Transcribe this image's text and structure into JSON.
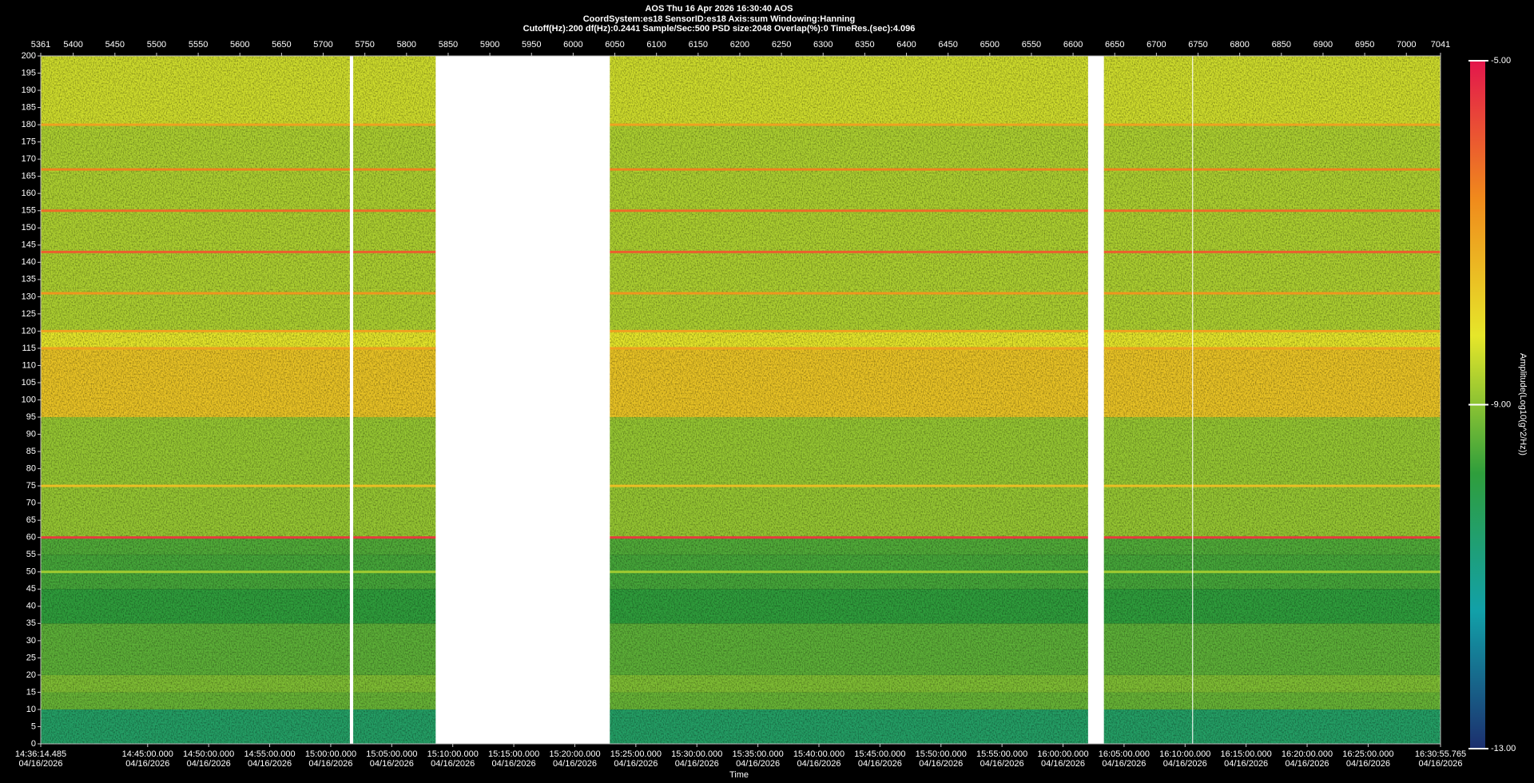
{
  "chart_data": {
    "type": "spectrogram",
    "title": "AOS  Thu 16 Apr 2026 16:30:40  AOS",
    "subtitle": "CoordSystem:es18    SensorID:es18     Axis:sum     Windowing:Hanning",
    "parameters": "Cutoff(Hz):200       df(Hz):0.2441       Sample/Sec:500       PSD size:2048         Overlap(%):0         TimeRes.(sec):4.096",
    "xlabel": "Time",
    "zlabel": "Amplitude(Log10(g^2/Hz))",
    "xlim": [
      5361,
      7041
    ],
    "xticks": [
      5361,
      5400,
      5450,
      5500,
      5550,
      5600,
      5650,
      5700,
      5750,
      5800,
      5850,
      5900,
      5950,
      6000,
      6050,
      6100,
      6150,
      6200,
      6250,
      6300,
      6350,
      6400,
      6450,
      6500,
      6550,
      6600,
      6650,
      6700,
      6750,
      6800,
      6850,
      6900,
      6950,
      7000,
      7041
    ],
    "time_ticks": [
      {
        "value": 5361,
        "label": "14:36:14.485",
        "date": "04/16/2026"
      },
      {
        "value": 5489.3,
        "label": "14:45:00.000",
        "date": "04/16/2026"
      },
      {
        "value": 5562.54,
        "label": "14:50:00.000",
        "date": "04/16/2026"
      },
      {
        "value": 5635.78,
        "label": "14:55:00.000",
        "date": "04/16/2026"
      },
      {
        "value": 5709.03,
        "label": "15:00:00.000",
        "date": "04/16/2026"
      },
      {
        "value": 5782.27,
        "label": "15:05:00.000",
        "date": "04/16/2026"
      },
      {
        "value": 5855.51,
        "label": "15:10:00.000",
        "date": "04/16/2026"
      },
      {
        "value": 5928.75,
        "label": "15:15:00.000",
        "date": "04/16/2026"
      },
      {
        "value": 6002.0,
        "label": "15:20:00.000",
        "date": "04/16/2026"
      },
      {
        "value": 6075.24,
        "label": "15:25:00.000",
        "date": "04/16/2026"
      },
      {
        "value": 6148.48,
        "label": "15:30:00.000",
        "date": "04/16/2026"
      },
      {
        "value": 6221.72,
        "label": "15:35:00.000",
        "date": "04/16/2026"
      },
      {
        "value": 6294.97,
        "label": "15:40:00.000",
        "date": "04/16/2026"
      },
      {
        "value": 6368.21,
        "label": "15:45:00.000",
        "date": "04/16/2026"
      },
      {
        "value": 6441.45,
        "label": "15:50:00.000",
        "date": "04/16/2026"
      },
      {
        "value": 6514.69,
        "label": "15:55:00.000",
        "date": "04/16/2026"
      },
      {
        "value": 6587.93,
        "label": "16:00:00.000",
        "date": "04/16/2026"
      },
      {
        "value": 6661.18,
        "label": "16:05:00.000",
        "date": "04/16/2026"
      },
      {
        "value": 6734.42,
        "label": "16:10:00.000",
        "date": "04/16/2026"
      },
      {
        "value": 6807.66,
        "label": "16:15:00.000",
        "date": "04/16/2026"
      },
      {
        "value": 6880.9,
        "label": "16:20:00.000",
        "date": "04/16/2026"
      },
      {
        "value": 6954.15,
        "label": "16:25:00.000",
        "date": "04/16/2026"
      },
      {
        "value": 7041,
        "label": "16:30:55.765",
        "date": "04/16/2026"
      }
    ],
    "ylim": [
      0,
      200
    ],
    "yticks": [
      0,
      5,
      10,
      15,
      20,
      25,
      30,
      35,
      40,
      45,
      50,
      55,
      60,
      65,
      70,
      75,
      80,
      85,
      90,
      95,
      100,
      105,
      110,
      115,
      120,
      125,
      130,
      135,
      140,
      145,
      150,
      155,
      160,
      165,
      170,
      175,
      180,
      185,
      190,
      195,
      200
    ],
    "zlim": [
      -13,
      -5
    ],
    "zticks": [
      {
        "value": -5,
        "label": "-5.00"
      },
      {
        "value": -9,
        "label": "-9.00"
      },
      {
        "value": -13,
        "label": "-13.00"
      }
    ],
    "colormap": [
      "#1c2f6e",
      "#12a0a8",
      "#2f9e3c",
      "#e6e62a",
      "#f08a1c",
      "#e3164c"
    ],
    "band_edges": [
      0,
      10,
      15,
      20,
      35,
      45,
      55,
      60,
      95,
      115,
      120,
      180,
      200
    ],
    "band_values": [
      -10.4,
      -9.3,
      -9.1,
      -9.4,
      -9.8,
      -9.6,
      -9.5,
      -8.9,
      -7.6,
      -8.2,
      -8.7,
      -8.4
    ],
    "line_freqs": [
      60,
      143,
      155,
      167,
      131,
      180,
      115,
      120,
      50,
      75
    ],
    "line_values": [
      -5.5,
      -6,
      -6.2,
      -6.5,
      -6.8,
      -7,
      -7,
      -7,
      -8.8,
      -7.5
    ],
    "gaps": [
      [
        5732,
        5736
      ],
      [
        5835,
        6044
      ],
      [
        6618,
        6637
      ],
      [
        6743,
        6744
      ]
    ]
  }
}
